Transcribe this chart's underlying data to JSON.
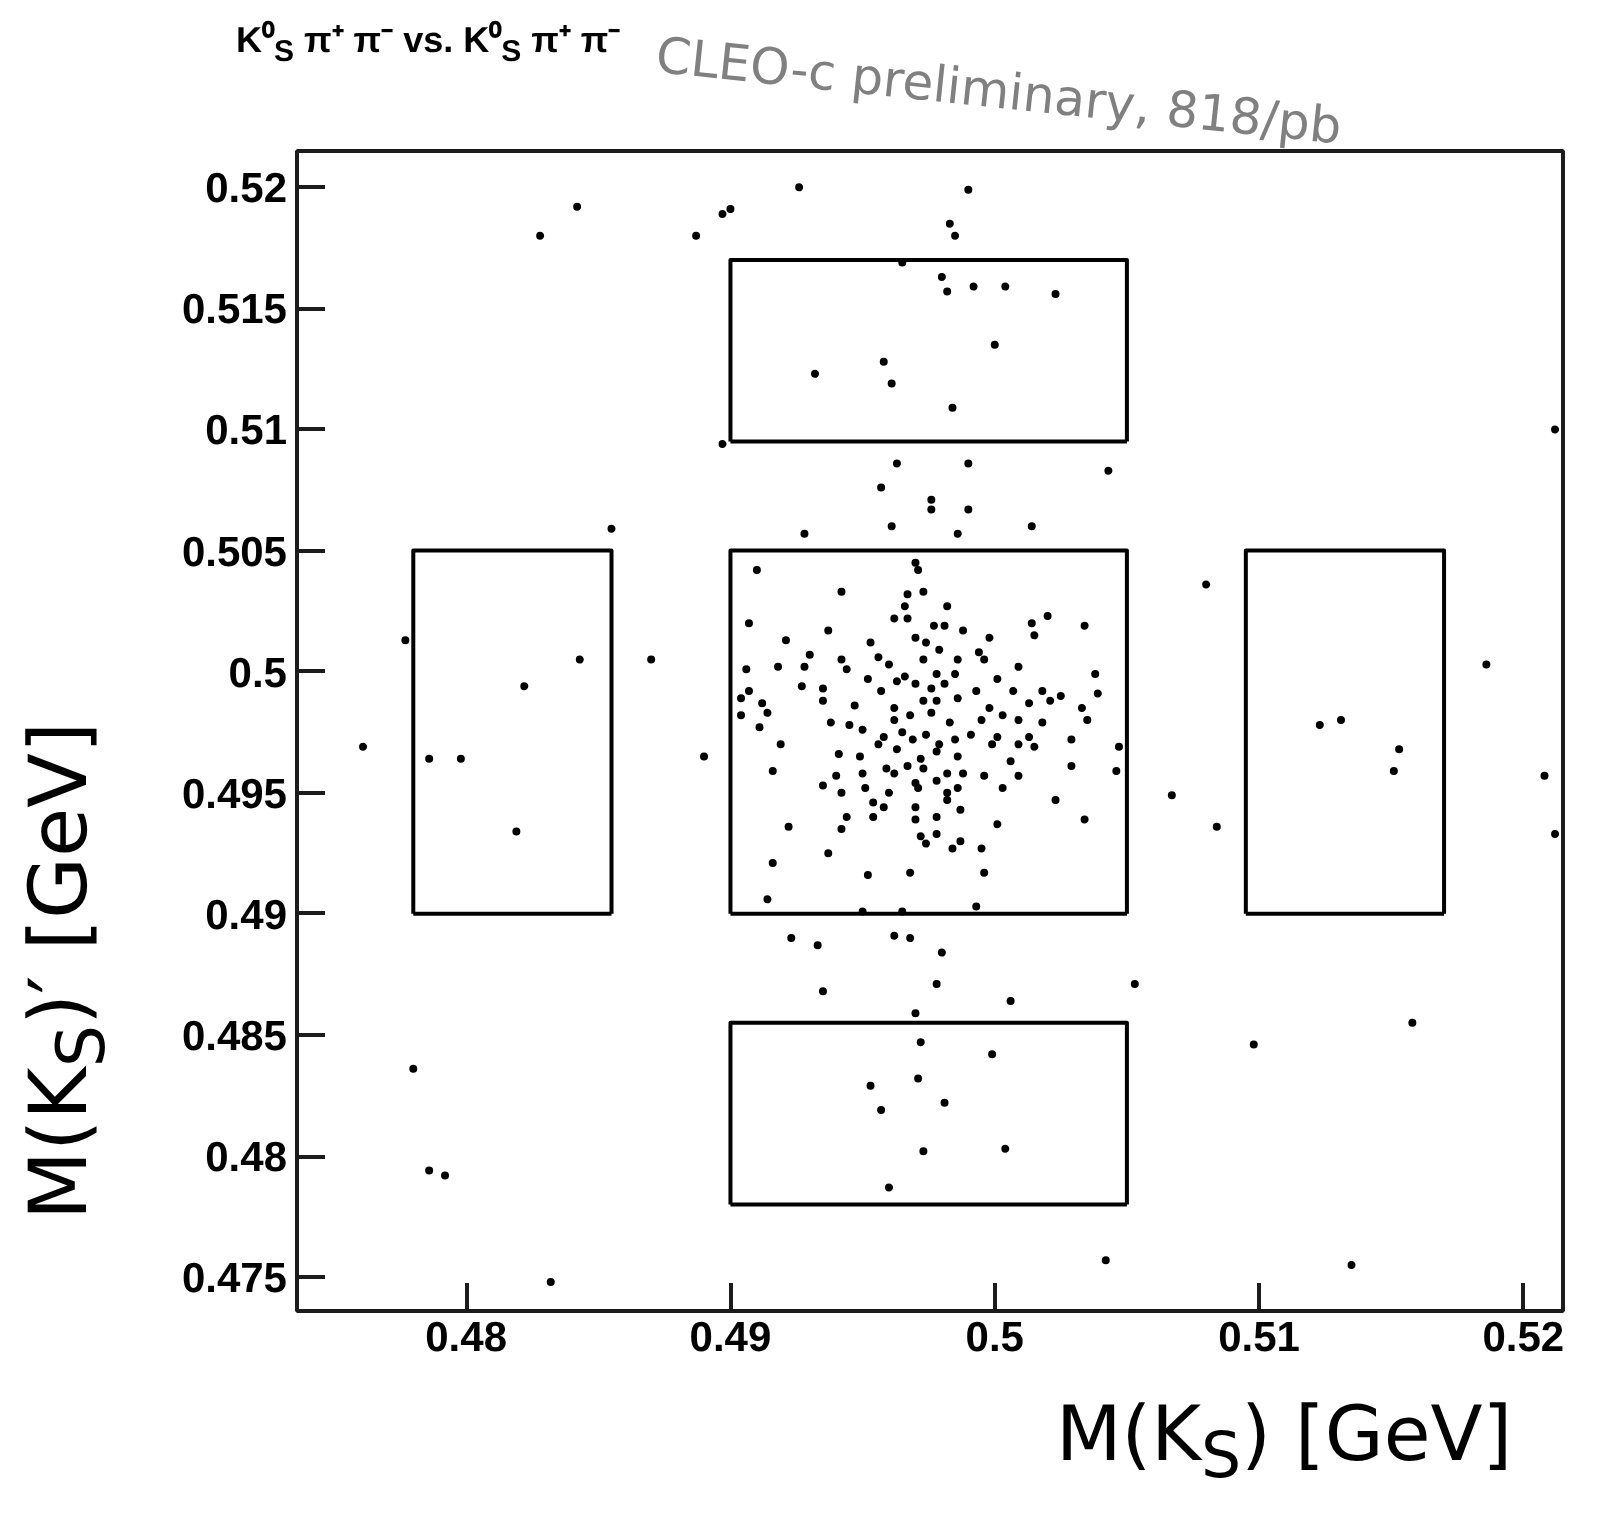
{
  "chart_data": {
    "type": "scatter",
    "title": "K⁰$_{S}$ π⁺ π⁻ vs. K⁰$_{S}$ π⁺ π⁻",
    "xlabel": "M(K$_{S}$) [GeV]",
    "ylabel": "M(K$_{S}$)′ [GeV]",
    "annotations": [
      "CLEO-c preliminary, 818/pb"
    ],
    "xlim": [
      0.4736,
      0.5215
    ],
    "ylim": [
      0.4736,
      0.5215
    ],
    "xticks": [
      0.48,
      0.49,
      0.5,
      0.51,
      0.52
    ],
    "yticks": [
      0.475,
      0.48,
      0.485,
      0.49,
      0.495,
      0.5,
      0.505,
      0.51,
      0.515,
      0.52
    ],
    "grid": false,
    "series": [
      {
        "color": "#000000",
        "marker": "circle",
        "x": [
          0.497,
          0.4971,
          0.491,
          0.4942,
          0.4973,
          0.4967,
          0.4966,
          0.4982,
          0.4907,
          0.4937,
          0.4962,
          0.4967,
          0.5014,
          0.502,
          0.5034,
          0.5015,
          0.4921,
          0.4953,
          0.497,
          0.4977,
          0.4981,
          0.4988,
          0.4998,
          0.4974,
          0.4979,
          0.4994,
          0.493,
          0.4942,
          0.4956,
          0.4973,
          0.4986,
          0.4996,
          0.5009,
          0.4906,
          0.4918,
          0.4928,
          0.4944,
          0.4952,
          0.496,
          0.4966,
          0.4978,
          0.4985,
          0.5001,
          0.5038,
          0.4927,
          0.4907,
          0.4935,
          0.4957,
          0.4963,
          0.497,
          0.4976,
          0.4981,
          0.4993,
          0.5007,
          0.5018,
          0.5025,
          0.5039,
          0.4904,
          0.4912,
          0.4935,
          0.4947,
          0.4962,
          0.4973,
          0.4978,
          0.4986,
          0.4998,
          0.5013,
          0.5021,
          0.5033,
          0.4904,
          0.4914,
          0.4938,
          0.4945,
          0.4962,
          0.4968,
          0.4976,
          0.4983,
          0.4995,
          0.5003,
          0.5009,
          0.5018,
          0.5035,
          0.4911,
          0.495,
          0.4958,
          0.4965,
          0.4969,
          0.4974,
          0.4979,
          0.4985,
          0.4991,
          0.5001,
          0.5013,
          0.5029,
          0.4919,
          0.4956,
          0.4963,
          0.4972,
          0.4978,
          0.4986,
          0.4999,
          0.5009,
          0.5015,
          0.5047,
          0.4941,
          0.4949,
          0.4959,
          0.4967,
          0.4973,
          0.4982,
          0.4996,
          0.5006,
          0.5029,
          0.4916,
          0.494,
          0.495,
          0.4962,
          0.497,
          0.4978,
          0.4988,
          0.5009,
          0.5046,
          0.4935,
          0.4942,
          0.4951,
          0.496,
          0.4971,
          0.4982,
          0.4986,
          0.5003,
          0.5023,
          0.4954,
          0.4958,
          0.497,
          0.4982,
          0.4987,
          0.4944,
          0.4942,
          0.4954,
          0.497,
          0.4978,
          0.5001,
          0.5034,
          0.4922,
          0.4972,
          0.4978,
          0.4987,
          0.4974,
          0.4984,
          0.4995,
          0.4937,
          0.4916,
          0.4952,
          0.4968,
          0.4996,
          0.4828,
          0.4842,
          0.4887,
          0.4897,
          0.49,
          0.4926,
          0.499,
          0.4983,
          0.4985,
          0.4965,
          0.498,
          0.4982,
          0.4992,
          0.5004,
          0.5023,
          0.5,
          0.4932,
          0.4958,
          0.4961,
          0.4984,
          0.4897,
          0.4963,
          0.499,
          0.5043,
          0.4957,
          0.4976,
          0.4976,
          0.499,
          0.4961,
          0.4986,
          0.5014,
          0.4928,
          0.4855,
          0.5212,
          0.4914,
          0.495,
          0.4965,
          0.4993,
          0.4923,
          0.4933,
          0.4962,
          0.4968,
          0.498,
          0.4935,
          0.4978,
          0.5006,
          0.5053,
          0.497,
          0.4972,
          0.4999,
          0.4953,
          0.4971,
          0.4957,
          0.4981,
          0.4973,
          0.5004,
          0.496,
          0.478,
          0.4786,
          0.4792,
          0.4832,
          0.5042,
          0.5135,
          0.5098,
          0.5158,
          0.4777,
          0.4822,
          0.4843,
          0.4798,
          0.4786,
          0.4761,
          0.487,
          0.489,
          0.4819,
          0.5123,
          0.5131,
          0.5153,
          0.5151,
          0.5186,
          0.5208,
          0.5212,
          0.5084,
          0.5067,
          0.508
        ],
        "values": [
          0.5045,
          0.5042,
          0.5042,
          0.5033,
          0.5033,
          0.5032,
          0.5027,
          0.5027,
          0.502,
          0.5017,
          0.5022,
          0.5022,
          0.502,
          0.5023,
          0.5019,
          0.5015,
          0.5013,
          0.5012,
          0.5014,
          0.5019,
          0.5019,
          0.5017,
          0.5014,
          0.5012,
          0.5009,
          0.5008,
          0.5007,
          0.5005,
          0.5006,
          0.5005,
          0.5005,
          0.5005,
          0.5002,
          0.5001,
          0.5002,
          0.5002,
          0.5001,
          0.4997,
          0.5003,
          0.4998,
          0.4999,
          0.4999,
          0.4997,
          0.4999,
          0.4994,
          0.4992,
          0.4993,
          0.4992,
          0.4996,
          0.4995,
          0.4993,
          0.4995,
          0.4992,
          0.4992,
          0.4992,
          0.499,
          0.4991,
          0.4989,
          0.4987,
          0.4988,
          0.4986,
          0.4985,
          0.4988,
          0.4988,
          0.4989,
          0.4985,
          0.4987,
          0.4988,
          0.4985,
          0.4982,
          0.4983,
          0.4979,
          0.4978,
          0.498,
          0.4982,
          0.4983,
          0.4979,
          0.498,
          0.4982,
          0.498,
          0.4979,
          0.498,
          0.4977,
          0.4976,
          0.4973,
          0.4975,
          0.4972,
          0.4974,
          0.497,
          0.4972,
          0.4974,
          0.4973,
          0.4973,
          0.4972,
          0.497,
          0.497,
          0.4968,
          0.4964,
          0.4967,
          0.4965,
          0.497,
          0.497,
          0.4969,
          0.4969,
          0.4966,
          0.4965,
          0.496,
          0.4961,
          0.496,
          0.4958,
          0.4957,
          0.4963,
          0.4961,
          0.4959,
          0.4957,
          0.4958,
          0.4958,
          0.4954,
          0.4955,
          0.4958,
          0.4957,
          0.4959,
          0.4953,
          0.495,
          0.4952,
          0.495,
          0.4952,
          0.495,
          0.4952,
          0.4952,
          0.4947,
          0.4946,
          0.4944,
          0.4944,
          0.4947,
          0.4943,
          0.494,
          0.4935,
          0.494,
          0.4939,
          0.494,
          0.4937,
          0.4939,
          0.4936,
          0.4932,
          0.4933,
          0.493,
          0.4929,
          0.4927,
          0.4927,
          0.4925,
          0.4921,
          0.4916,
          0.4917,
          0.4917,
          0.518,
          0.5192,
          0.518,
          0.5189,
          0.5191,
          0.52,
          0.5199,
          0.5185,
          0.518,
          0.5169,
          0.5163,
          0.5157,
          0.5159,
          0.5159,
          0.5156,
          0.5135,
          0.5123,
          0.5128,
          0.5119,
          0.5109,
          0.5094,
          0.5086,
          0.5086,
          0.5083,
          0.5076,
          0.5071,
          0.5067,
          0.5067,
          0.506,
          0.5057,
          0.506,
          0.5057,
          0.5059,
          0.51,
          0.4906,
          0.4901,
          0.4901,
          0.4903,
          0.489,
          0.4887,
          0.4891,
          0.489,
          0.4884,
          0.4868,
          0.4871,
          0.4864,
          0.4871,
          0.4859,
          0.4847,
          0.4842,
          0.4829,
          0.4832,
          0.4819,
          0.4822,
          0.4802,
          0.4803,
          0.4787,
          0.4836,
          0.4794,
          0.4792,
          0.4748,
          0.4757,
          0.4755,
          0.4846,
          0.4855,
          0.5013,
          0.4994,
          0.5005,
          0.4964,
          0.4964,
          0.4969,
          0.5005,
          0.4965,
          0.4934,
          0.4978,
          0.498,
          0.4968,
          0.4959,
          0.5003,
          0.4957,
          0.4933,
          0.4936,
          0.4949,
          0.5036
        ]
      },
      {
        "type": "line",
        "color": "#000000",
        "x": [
          0.49,
          0.49,
          0.505,
          0.505
        ],
        "values": [
          0.49,
          0.505,
          0.505,
          0.49
        ]
      },
      {
        "type": "line",
        "color": "#000000",
        "x": [
          0.49,
          0.505
        ],
        "values": [
          0.49,
          0.49
        ]
      },
      {
        "type": "line",
        "color": "#000000",
        "x": [
          0.478,
          0.478,
          0.4855,
          0.4855
        ],
        "values": [
          0.49,
          0.505,
          0.505,
          0.49
        ]
      },
      {
        "type": "line",
        "color": "#000000",
        "x": [
          0.478,
          0.4855
        ],
        "values": [
          0.49,
          0.49
        ]
      },
      {
        "type": "line",
        "color": "#000000",
        "x": [
          0.5095,
          0.5095,
          0.517,
          0.517
        ],
        "values": [
          0.49,
          0.505,
          0.505,
          0.49
        ]
      },
      {
        "type": "line",
        "color": "#000000",
        "x": [
          0.5095,
          0.517
        ],
        "values": [
          0.49,
          0.49
        ]
      },
      {
        "type": "line",
        "color": "#000000",
        "x": [
          0.49,
          0.49,
          0.505,
          0.505
        ],
        "values": [
          0.5095,
          0.517,
          0.517,
          0.5095
        ]
      },
      {
        "type": "line",
        "color": "#000000",
        "x": [
          0.49,
          0.505
        ],
        "values": [
          0.5095,
          0.5095
        ]
      },
      {
        "type": "line",
        "color": "#000000",
        "x": [
          0.49,
          0.49,
          0.505,
          0.505
        ],
        "values": [
          0.478,
          0.4855,
          0.4855,
          0.478
        ]
      },
      {
        "type": "line",
        "color": "#000000",
        "x": [
          0.49,
          0.505
        ],
        "values": [
          0.478,
          0.478
        ]
      }
    ]
  }
}
